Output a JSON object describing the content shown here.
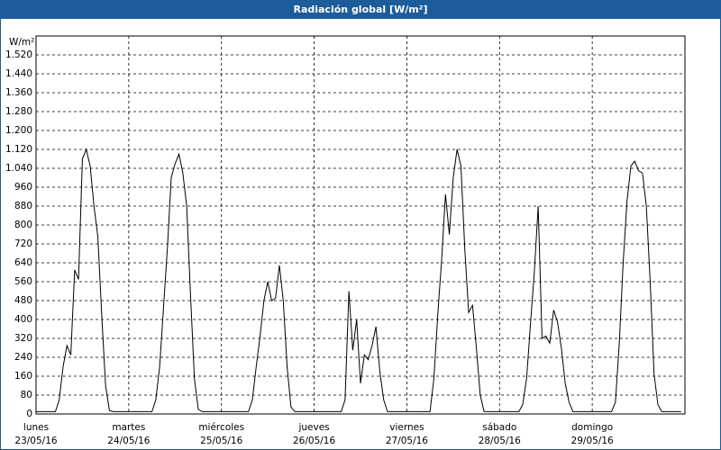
{
  "chart_data": {
    "type": "line",
    "title": "Radiación global [W/m²]",
    "y_label": "W/m²",
    "x": [
      0,
      1,
      2,
      3,
      4,
      5,
      6,
      7,
      8,
      9,
      10,
      11,
      12,
      13,
      14,
      15,
      16,
      17,
      18,
      19,
      20,
      21,
      22,
      23,
      24,
      25,
      26,
      27,
      28,
      29,
      30,
      31,
      32,
      33,
      34,
      35,
      36,
      37,
      38,
      39,
      40,
      41,
      42,
      43,
      44,
      45,
      46,
      47,
      48,
      49,
      50,
      51,
      52,
      53,
      54,
      55,
      56,
      57,
      58,
      59,
      60,
      61,
      62,
      63,
      64,
      65,
      66,
      67,
      68,
      69,
      70,
      71,
      72,
      73,
      74,
      75,
      76,
      77,
      78,
      79,
      80,
      81,
      82,
      83,
      84,
      85,
      86,
      87,
      88,
      89,
      90,
      91,
      92,
      93,
      94,
      95,
      96,
      97,
      98,
      99,
      100,
      101,
      102,
      103,
      104,
      105,
      106,
      107,
      108,
      109,
      110,
      111,
      112,
      113,
      114,
      115,
      116,
      117,
      118,
      119,
      120,
      121,
      122,
      123,
      124,
      125,
      126,
      127,
      128,
      129,
      130,
      131,
      132,
      133,
      134,
      135,
      136,
      137,
      138,
      139,
      140,
      141,
      142,
      143,
      144,
      145,
      146,
      147,
      148,
      149,
      150,
      151,
      152,
      153,
      154,
      155,
      156,
      157,
      158,
      159,
      160,
      161,
      162,
      163,
      164,
      165,
      166,
      167
    ],
    "values": [
      10,
      10,
      10,
      10,
      10,
      10,
      60,
      200,
      290,
      250,
      610,
      570,
      1080,
      1120,
      1050,
      880,
      750,
      420,
      120,
      15,
      10,
      10,
      10,
      10,
      10,
      10,
      10,
      10,
      10,
      10,
      10,
      60,
      200,
      450,
      700,
      1000,
      1060,
      1100,
      1020,
      880,
      500,
      150,
      20,
      10,
      10,
      10,
      10,
      10,
      10,
      10,
      10,
      10,
      10,
      10,
      10,
      10,
      60,
      200,
      330,
      480,
      560,
      480,
      490,
      630,
      480,
      200,
      30,
      10,
      10,
      10,
      10,
      10,
      10,
      10,
      10,
      10,
      10,
      10,
      10,
      10,
      60,
      520,
      270,
      400,
      130,
      250,
      230,
      290,
      370,
      180,
      60,
      10,
      10,
      10,
      10,
      10,
      10,
      10,
      10,
      10,
      10,
      10,
      10,
      150,
      420,
      650,
      930,
      760,
      1000,
      1120,
      1050,
      700,
      430,
      460,
      280,
      80,
      10,
      10,
      10,
      10,
      10,
      10,
      10,
      10,
      10,
      10,
      40,
      150,
      380,
      600,
      880,
      320,
      330,
      300,
      440,
      390,
      280,
      130,
      50,
      10,
      10,
      10,
      10,
      10,
      10,
      10,
      10,
      10,
      10,
      10,
      50,
      300,
      640,
      900,
      1050,
      1070,
      1030,
      1020,
      880,
      560,
      170,
      40,
      10,
      10,
      10,
      10,
      10,
      10
    ],
    "color": "#000000",
    "xlim": [
      0,
      168
    ],
    "xticks": [
      {
        "value": 0,
        "label": [
          "lunes",
          "23/05/16"
        ]
      },
      {
        "value": 24,
        "label": [
          "martes",
          "24/05/16"
        ]
      },
      {
        "value": 48,
        "label": [
          "miércoles",
          "25/05/16"
        ]
      },
      {
        "value": 72,
        "label": [
          "jueves",
          "26/05/16"
        ]
      },
      {
        "value": 96,
        "label": [
          "viernes",
          "27/05/16"
        ]
      },
      {
        "value": 120,
        "label": [
          "sábado",
          "28/05/16"
        ]
      },
      {
        "value": 144,
        "label": [
          "domingo",
          "29/05/16"
        ]
      }
    ],
    "ylim": [
      0,
      1600
    ],
    "yticks": [
      0,
      80,
      160,
      240,
      320,
      400,
      480,
      560,
      640,
      720,
      800,
      880,
      960,
      {
        "value": 1040,
        "label": "1.040"
      },
      {
        "value": 1120,
        "label": "1.120"
      },
      {
        "value": 1200,
        "label": "1.200"
      },
      {
        "value": 1280,
        "label": "1.280"
      },
      {
        "value": 1360,
        "label": "1.360"
      },
      {
        "value": 1440,
        "label": "1.440"
      },
      {
        "value": 1520,
        "label": "1.520"
      }
    ],
    "grid": true
  }
}
